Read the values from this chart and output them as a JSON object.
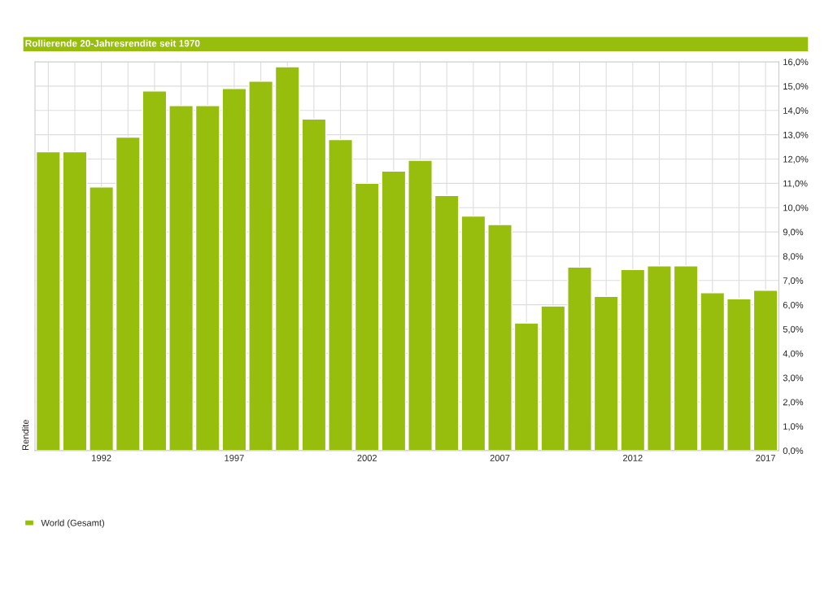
{
  "chart_data": {
    "type": "bar",
    "title": "Rollierende 20-Jahresrendite seit 1970",
    "ylabel": "Rendite",
    "categories": [
      null,
      null,
      "1992",
      null,
      null,
      null,
      null,
      "1997",
      null,
      null,
      null,
      null,
      "2002",
      null,
      null,
      null,
      null,
      "2007",
      null,
      null,
      null,
      null,
      "2012",
      null,
      null,
      null,
      null,
      "2017"
    ],
    "series": [
      {
        "name": "World (Gesamt)",
        "color": "#97bd0d",
        "values": [
          12.3,
          12.3,
          10.85,
          12.9,
          14.8,
          14.2,
          14.2,
          14.9,
          15.2,
          15.8,
          13.65,
          12.8,
          11.0,
          11.5,
          11.95,
          10.5,
          9.65,
          9.3,
          5.25,
          5.95,
          7.55,
          6.35,
          7.45,
          7.6,
          7.6,
          6.5,
          6.25,
          6.6
        ]
      }
    ],
    "ylim": [
      0,
      16
    ],
    "yticks": [
      {
        "value": 0,
        "label": "0,0%"
      },
      {
        "value": 1,
        "label": "1,0%"
      },
      {
        "value": 2,
        "label": "2,0%"
      },
      {
        "value": 3,
        "label": "3,0%"
      },
      {
        "value": 4,
        "label": "4,0%"
      },
      {
        "value": 5,
        "label": "5,0%"
      },
      {
        "value": 6,
        "label": "6,0%"
      },
      {
        "value": 7,
        "label": "7,0%"
      },
      {
        "value": 8,
        "label": "8,0%"
      },
      {
        "value": 9,
        "label": "9,0%"
      },
      {
        "value": 10,
        "label": "10,0%"
      },
      {
        "value": 11,
        "label": "11,0%"
      },
      {
        "value": 12,
        "label": "12,0%"
      },
      {
        "value": 13,
        "label": "13,0%"
      },
      {
        "value": 14,
        "label": "14,0%"
      },
      {
        "value": 15,
        "label": "15,0%"
      },
      {
        "value": 16,
        "label": "16,0%"
      }
    ],
    "grid": true,
    "legend": "bottom left"
  }
}
